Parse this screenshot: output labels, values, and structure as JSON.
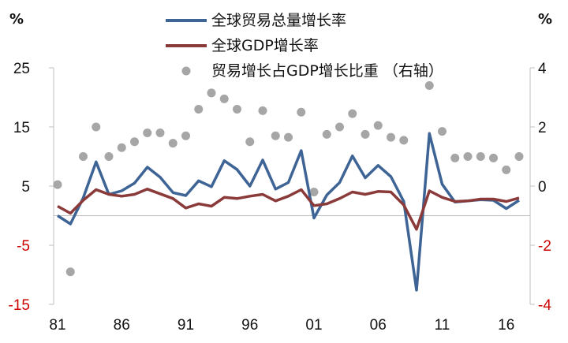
{
  "chart_data": {
    "type": "line",
    "left_unit": "%",
    "right_unit": "%",
    "x": [
      1981,
      1982,
      1983,
      1984,
      1985,
      1986,
      1987,
      1988,
      1989,
      1990,
      1991,
      1992,
      1993,
      1994,
      1995,
      1996,
      1997,
      1998,
      1999,
      2000,
      2001,
      2002,
      2003,
      2004,
      2005,
      2006,
      2007,
      2008,
      2009,
      2010,
      2011,
      2012,
      2013,
      2014,
      2015,
      2016,
      2017
    ],
    "x_tick_years": [
      1981,
      1986,
      1991,
      1996,
      2001,
      2006,
      2011,
      2016
    ],
    "x_tick_labels": [
      "81",
      "86",
      "91",
      "96",
      "01",
      "06",
      "11",
      "16"
    ],
    "y_left": {
      "min": -15,
      "max": 25,
      "ticks": [
        25,
        15,
        5,
        -5,
        -15
      ],
      "tick_labels": [
        "25",
        "15",
        "5",
        "-5",
        "-15"
      ],
      "negative_color": "#cc0000"
    },
    "y_right": {
      "min": -4,
      "max": 4,
      "ticks": [
        4,
        2,
        0,
        -2,
        -4
      ],
      "tick_labels": [
        "4",
        "2",
        "0",
        "-2",
        "-4"
      ],
      "negative_color": "#cc0000"
    },
    "series": [
      {
        "name": "全球贸易总量增长率",
        "axis": "left",
        "style": "line",
        "color": "#3e6496",
        "values": [
          0.0,
          -1.4,
          3.0,
          9.1,
          3.6,
          4.2,
          5.5,
          8.2,
          6.5,
          3.9,
          3.4,
          5.9,
          4.9,
          9.3,
          7.8,
          5.0,
          9.4,
          4.5,
          5.6,
          11.0,
          -0.4,
          3.5,
          5.6,
          10.1,
          6.4,
          8.5,
          6.6,
          2.4,
          -12.6,
          13.9,
          5.3,
          2.3,
          2.5,
          2.7,
          2.6,
          1.2,
          2.6
        ]
      },
      {
        "name": "全球GDP增长率",
        "axis": "left",
        "style": "line",
        "color": "#8b3a3a",
        "values": [
          1.6,
          0.4,
          2.6,
          4.4,
          3.6,
          3.3,
          3.6,
          4.5,
          3.7,
          2.9,
          1.3,
          2.0,
          1.6,
          3.1,
          2.9,
          3.3,
          3.6,
          2.5,
          3.3,
          4.4,
          1.7,
          2.0,
          2.9,
          4.0,
          3.6,
          4.1,
          4.0,
          1.8,
          -2.3,
          4.2,
          3.1,
          2.4,
          2.5,
          2.8,
          2.8,
          2.4,
          3.0
        ]
      },
      {
        "name": "贸易增长占GDP增长比重 （右轴）",
        "axis": "right",
        "style": "scatter",
        "color": "#a6a6a6",
        "values": [
          0.05,
          -2.9,
          1.0,
          2.0,
          1.0,
          1.3,
          1.5,
          1.8,
          1.8,
          1.45,
          1.7,
          2.6,
          3.15,
          2.95,
          2.6,
          1.5,
          2.55,
          1.7,
          1.65,
          2.5,
          -0.2,
          1.75,
          2.0,
          2.45,
          1.75,
          2.05,
          1.65,
          1.55,
          null,
          3.4,
          1.85,
          0.95,
          1.0,
          1.0,
          0.95,
          0.55,
          1.0
        ]
      }
    ],
    "grid": false,
    "legend_position": "top-center"
  }
}
